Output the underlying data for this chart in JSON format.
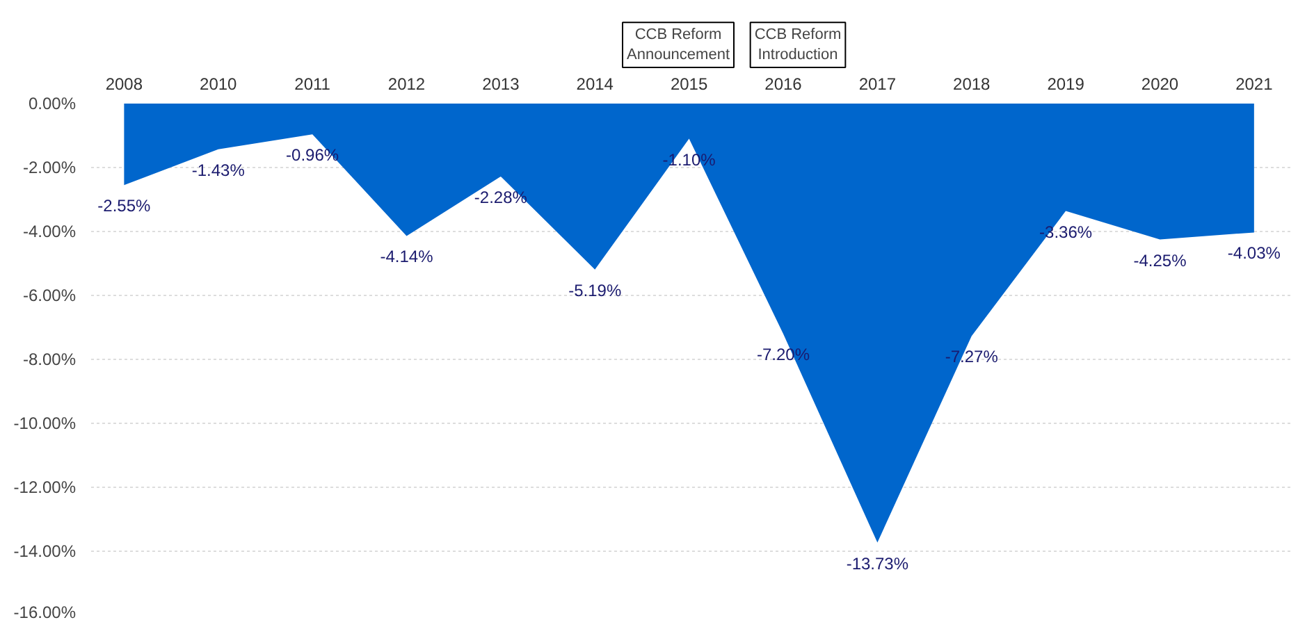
{
  "chart_data": {
    "type": "area",
    "categories": [
      "2008",
      "2010",
      "2011",
      "2012",
      "2013",
      "2014",
      "2015",
      "2016",
      "2017",
      "2018",
      "2019",
      "2020",
      "2021"
    ],
    "series": [
      {
        "color": "#0066cc",
        "values": [
          -2.55,
          -1.43,
          -0.96,
          -4.14,
          -2.28,
          -5.19,
          -1.1,
          -7.2,
          -13.73,
          -7.27,
          -3.36,
          -4.25,
          -4.03
        ],
        "value_labels": [
          "-2.55%",
          "-1.43%",
          "-0.96%",
          "-4.14%",
          "-2.28%",
          "-5.19%",
          "-1.10%",
          "-7.20%",
          "-13.73%",
          "-7.27%",
          "-3.36%",
          "-4.25%",
          "-4.03%"
        ]
      }
    ],
    "ylim": [
      -16,
      0
    ],
    "yticks": [
      {
        "value": 0,
        "label": "0.00%"
      },
      {
        "value": -2,
        "label": "-2.00%"
      },
      {
        "value": -4,
        "label": "-4.00%"
      },
      {
        "value": -6,
        "label": "-6.00%"
      },
      {
        "value": -8,
        "label": "-8.00%"
      },
      {
        "value": -10,
        "label": "-10.00%"
      },
      {
        "value": -12,
        "label": "-12.00%"
      },
      {
        "value": -14,
        "label": "-14.00%"
      },
      {
        "value": -16,
        "label": "-16.00%"
      }
    ],
    "grid": "y",
    "annotations": [
      "CCB Reform\nAnnouncement",
      "CCB Reform\nIntroduction"
    ]
  }
}
